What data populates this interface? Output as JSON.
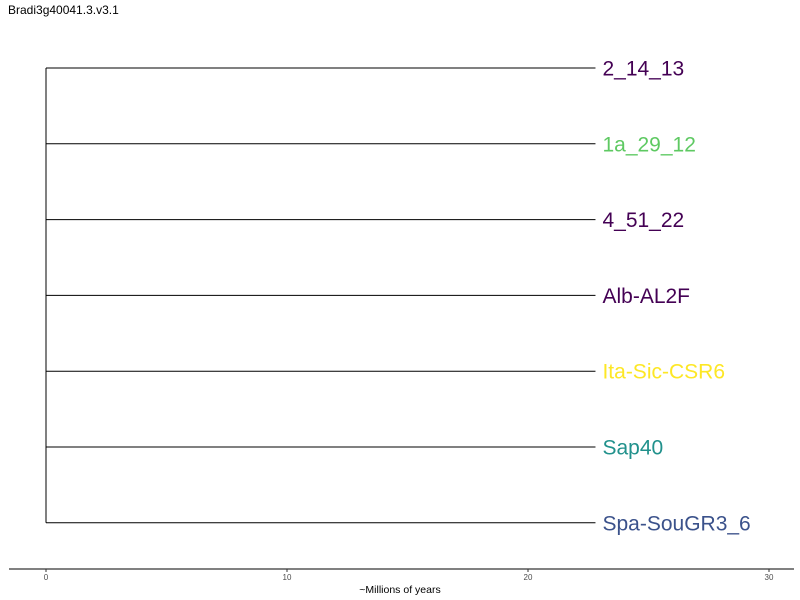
{
  "title": "Bradi3g40041.3.v3.1",
  "chart_data": {
    "type": "tree",
    "xlabel": "~Millions of years",
    "xlim": [
      0,
      30
    ],
    "xticks": [
      0,
      10,
      20,
      30
    ],
    "root_x": 0,
    "tips": [
      {
        "label": "2_14_13",
        "x": 22.8,
        "color": "#440154"
      },
      {
        "label": "1a_29_12",
        "x": 22.8,
        "color": "#5ec962"
      },
      {
        "label": "4_51_22",
        "x": 22.8,
        "color": "#440154"
      },
      {
        "label": "Alb-AL2F",
        "x": 22.8,
        "color": "#440154"
      },
      {
        "label": "Ita-Sic-CSR6",
        "x": 22.8,
        "color": "#fde725"
      },
      {
        "label": "Sap40",
        "x": 22.8,
        "color": "#21918c"
      },
      {
        "label": "Spa-SouGR3_6",
        "x": 22.8,
        "color": "#3b528b"
      }
    ]
  }
}
